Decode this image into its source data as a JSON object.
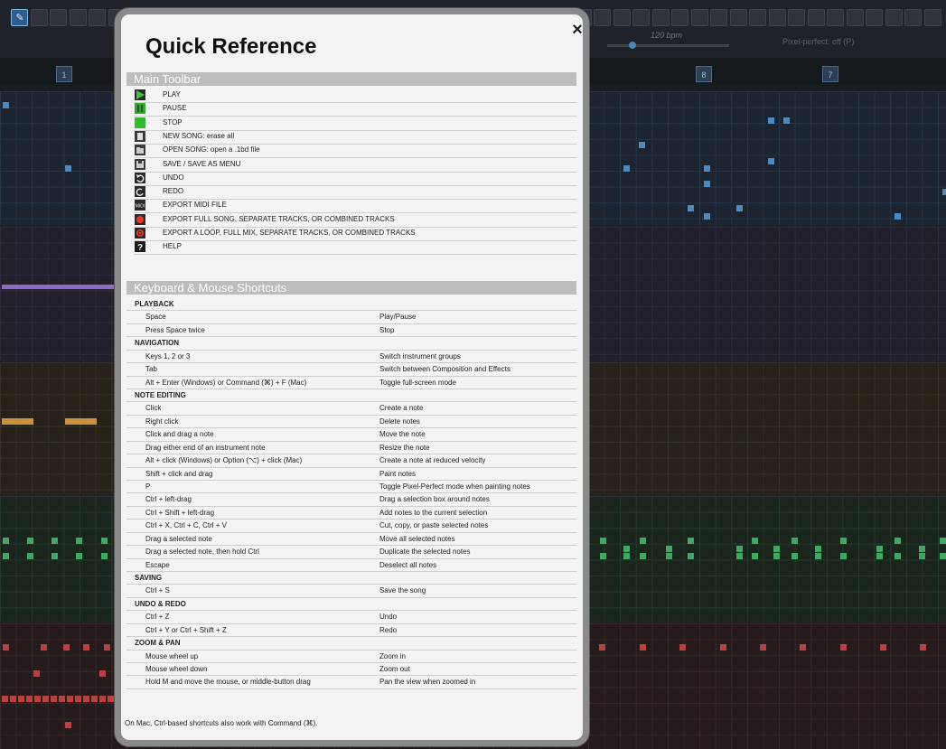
{
  "background": {
    "tempo_label": "120 bpm",
    "pixel_mode_label": "Pixel-perfect: off (P)",
    "channel_numbers": [
      "1",
      "8",
      "7"
    ],
    "colors": {
      "blue_note": "#4a89c2",
      "purple_note": "#8b6bc4",
      "orange_note": "#c99140",
      "green_note": "#45a564",
      "red_note": "#b84242"
    }
  },
  "modal": {
    "title": "Quick Reference",
    "close_icon": "×",
    "toolbar_section": {
      "header": "Main Toolbar",
      "items": [
        {
          "icon": "play-icon",
          "label": "PLAY"
        },
        {
          "icon": "pause-icon",
          "label": "PAUSE"
        },
        {
          "icon": "stop-icon",
          "label": "STOP"
        },
        {
          "icon": "new-song-icon",
          "label": "NEW SONG: erase all"
        },
        {
          "icon": "open-song-icon",
          "label": "OPEN SONG: open a .1bd file"
        },
        {
          "icon": "save-icon",
          "label": "SAVE / SAVE AS MENU"
        },
        {
          "icon": "undo-icon",
          "label": "UNDO"
        },
        {
          "icon": "redo-icon",
          "label": "REDO"
        },
        {
          "icon": "midi-icon",
          "label": "EXPORT MIDI FILE"
        },
        {
          "icon": "export-song-icon",
          "label": "EXPORT FULL SONG, SEPARATE TRACKS, OR COMBINED TRACKS"
        },
        {
          "icon": "export-loop-icon",
          "label": "EXPORT A LOOP, FULL MIX, SEPARATE TRACKS, OR COMBINED TRACKS"
        },
        {
          "icon": "help-icon",
          "label": "HELP"
        }
      ]
    },
    "shortcuts_section": {
      "header": "Keyboard & Mouse Shortcuts",
      "rows": [
        {
          "cat": "PLAYBACK"
        },
        {
          "key": "Space",
          "act": "Play/Pause"
        },
        {
          "key": "Press Space twice",
          "act": "Stop"
        },
        {
          "cat": "NAVIGATION"
        },
        {
          "key": "Keys 1, 2 or 3",
          "act": "Switch instrument groups"
        },
        {
          "key": "Tab",
          "act": "Switch between Composition and Effects"
        },
        {
          "key": "Alt + Enter (Windows) or Command (⌘) + F (Mac)",
          "act": "Toggle full-screen mode"
        },
        {
          "cat": "NOTE EDITING"
        },
        {
          "key": "Click",
          "act": "Create a note"
        },
        {
          "key": "Right click",
          "act": "Delete notes"
        },
        {
          "key": "Click and drag a note",
          "act": "Move the note"
        },
        {
          "key": "Drag either end of an instrument note",
          "act": "Resize the note"
        },
        {
          "key": "Alt + click (Windows) or Option (⌥) + click (Mac)",
          "act": "Create a note at reduced velocity"
        },
        {
          "key": "Shift + click and drag",
          "act": "Paint notes"
        },
        {
          "key": "P",
          "act": "Toggle Pixel-Perfect mode when painting notes"
        },
        {
          "key": "Ctrl + left-drag",
          "act": "Drag a selection box around notes"
        },
        {
          "key": "Ctrl + Shift + left-drag",
          "act": "Add notes to the current selection"
        },
        {
          "key": "Ctrl + X, Ctrl + C, Ctrl + V",
          "act": "Cut, copy, or paste selected notes"
        },
        {
          "key": "Drag a selected note",
          "act": "Move all selected notes"
        },
        {
          "key": "Drag a selected note, then hold Ctrl",
          "act": "Duplicate the selected notes"
        },
        {
          "key": "Escape",
          "act": "Deselect all notes"
        },
        {
          "cat": "SAVING"
        },
        {
          "key": "Ctrl + S",
          "act": "Save the song"
        },
        {
          "cat": "UNDO & REDO"
        },
        {
          "key": "Ctrl + Z",
          "act": "Undo"
        },
        {
          "key": "Ctrl + Y or Ctrl + Shift + Z",
          "act": "Redo"
        },
        {
          "cat": "ZOOM & PAN"
        },
        {
          "key": "Mouse wheel up",
          "act": "Zoom in"
        },
        {
          "key": "Mouse wheel down",
          "act": "Zoom out"
        },
        {
          "key": "Hold M and move the mouse, or middle-button drag",
          "act": "Pan the view when zoomed in"
        }
      ]
    },
    "footnote": "On Mac, Ctrl-based shortcuts also work with Command (⌘)."
  }
}
